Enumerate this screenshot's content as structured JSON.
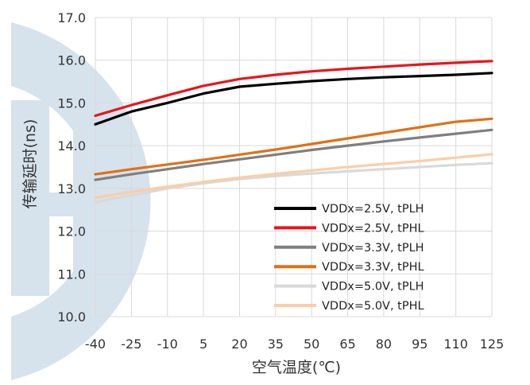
{
  "chart_data": {
    "type": "line",
    "title": "",
    "xlabel": "空气温度(℃)",
    "ylabel": "传输延时(ns)",
    "x": [
      -40,
      -25,
      -10,
      5,
      20,
      35,
      50,
      65,
      80,
      95,
      110,
      125
    ],
    "x_tick_labels": [
      "-40",
      "-25",
      "-10",
      "5",
      "20",
      "35",
      "50",
      "65",
      "80",
      "95",
      "110",
      "125"
    ],
    "xlim": [
      -40,
      125
    ],
    "ylim": [
      10.0,
      17.0
    ],
    "y_tick_labels": [
      "10.0",
      "11.0",
      "12.0",
      "13.0",
      "14.0",
      "15.0",
      "16.0",
      "17.0"
    ],
    "grid": true,
    "legend_position": "bottom-right",
    "series": [
      {
        "name": "VDDx=2.5V, tPLH",
        "color": "#000000",
        "values": [
          14.5,
          14.8,
          15.0,
          15.22,
          15.38,
          15.45,
          15.51,
          15.56,
          15.6,
          15.63,
          15.66,
          15.7
        ]
      },
      {
        "name": "VDDx=2.5V, tPHL",
        "color": "#e8151b",
        "values": [
          14.7,
          14.95,
          15.18,
          15.4,
          15.56,
          15.66,
          15.74,
          15.8,
          15.85,
          15.9,
          15.94,
          15.98
        ]
      },
      {
        "name": "VDDx=3.3V, tPLH",
        "color": "#7f7f7f",
        "values": [
          13.2,
          13.33,
          13.45,
          13.57,
          13.68,
          13.79,
          13.9,
          14.0,
          14.1,
          14.19,
          14.28,
          14.37
        ]
      },
      {
        "name": "VDDx=3.3V, tPHL",
        "color": "#e07115",
        "values": [
          13.33,
          13.45,
          13.56,
          13.67,
          13.79,
          13.91,
          14.04,
          14.17,
          14.3,
          14.43,
          14.56,
          14.63
        ]
      },
      {
        "name": "VDDx=5.0V, tPLH",
        "color": "#d9d9d9",
        "values": [
          12.68,
          12.84,
          13.0,
          13.12,
          13.22,
          13.29,
          13.35,
          13.4,
          13.45,
          13.5,
          13.55,
          13.59
        ]
      },
      {
        "name": "VDDx=5.0V, tPHL",
        "color": "#fbcda7",
        "values": [
          12.78,
          12.92,
          13.04,
          13.15,
          13.25,
          13.34,
          13.42,
          13.5,
          13.57,
          13.64,
          13.72,
          13.8
        ]
      }
    ]
  },
  "colors": {
    "grid": "#d9d9d9",
    "watermark": "#c9d9e6"
  }
}
